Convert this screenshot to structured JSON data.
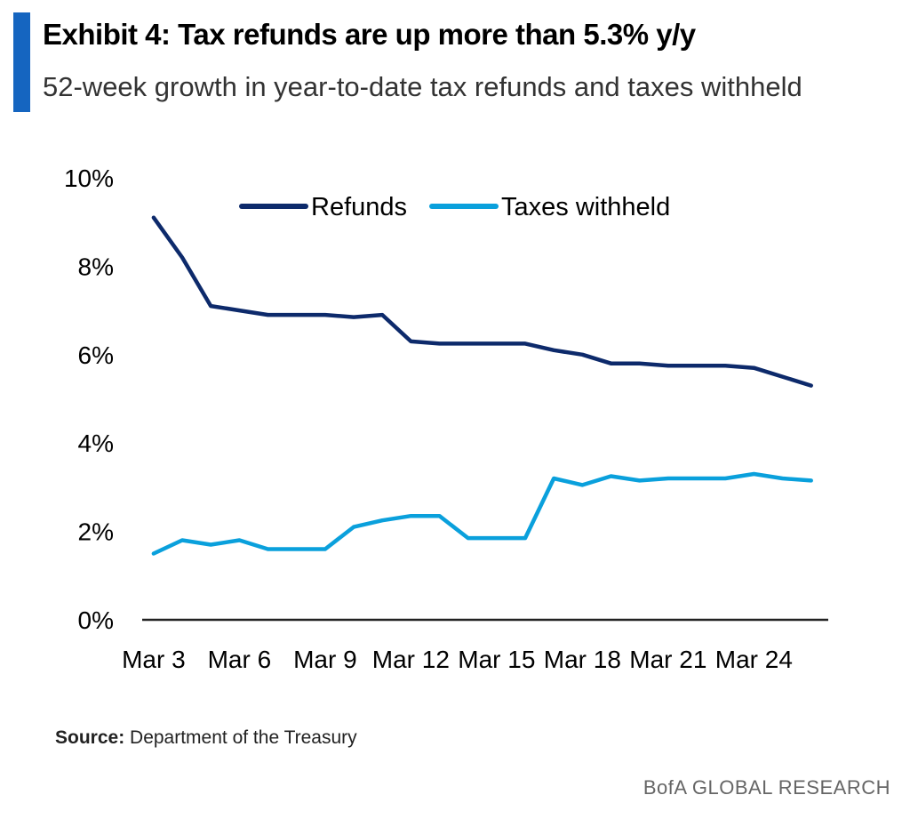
{
  "header": {
    "title": "Exhibit 4: Tax refunds are up more than 5.3% y/y",
    "subtitle": "52-week growth in year-to-date tax refunds and taxes withheld",
    "accent_color": "#1565c0"
  },
  "footer": {
    "source_label": "Source:",
    "source_text": "Department of the Treasury",
    "brand": "BofA GLOBAL RESEARCH"
  },
  "chart_data": {
    "type": "line",
    "title": "Exhibit 4: Tax refunds are up more than 5.3% y/y",
    "subtitle": "52-week growth in year-to-date tax refunds and taxes withheld",
    "xlabel": "",
    "ylabel": "",
    "x_tick_labels": [
      "Mar 3",
      "Mar 6",
      "Mar 9",
      "Mar 12",
      "Mar 15",
      "Mar 18",
      "Mar 21",
      "Mar 24"
    ],
    "y_tick_labels": [
      "0%",
      "2%",
      "4%",
      "6%",
      "8%",
      "10%"
    ],
    "ylim": [
      0,
      10
    ],
    "xlim": [
      2.6,
      26.6
    ],
    "grid": false,
    "legend_position": "top",
    "series": [
      {
        "name": "Refunds",
        "color": "#0d2a6b",
        "x": [
          3,
          4,
          5,
          6,
          7,
          8,
          9,
          10,
          11,
          12,
          13,
          14,
          15,
          16,
          17,
          18,
          19,
          20,
          21,
          22,
          23,
          24,
          25,
          26
        ],
        "values": [
          9.1,
          8.2,
          7.1,
          7.0,
          6.9,
          6.9,
          6.9,
          6.85,
          6.9,
          6.3,
          6.25,
          6.25,
          6.25,
          6.25,
          6.1,
          6.0,
          5.8,
          5.8,
          5.75,
          5.75,
          5.75,
          5.7,
          5.5,
          5.3
        ]
      },
      {
        "name": "Taxes withheld",
        "color": "#0aa0dc",
        "x": [
          3,
          4,
          5,
          6,
          7,
          8,
          9,
          10,
          11,
          12,
          13,
          14,
          15,
          16,
          17,
          18,
          19,
          20,
          21,
          22,
          23,
          24,
          25,
          26
        ],
        "values": [
          1.5,
          1.8,
          1.7,
          1.8,
          1.6,
          1.6,
          1.6,
          2.1,
          2.25,
          2.35,
          2.35,
          1.85,
          1.85,
          1.85,
          3.2,
          3.05,
          3.25,
          3.15,
          3.2,
          3.2,
          3.2,
          3.3,
          3.2,
          3.15
        ]
      }
    ]
  }
}
